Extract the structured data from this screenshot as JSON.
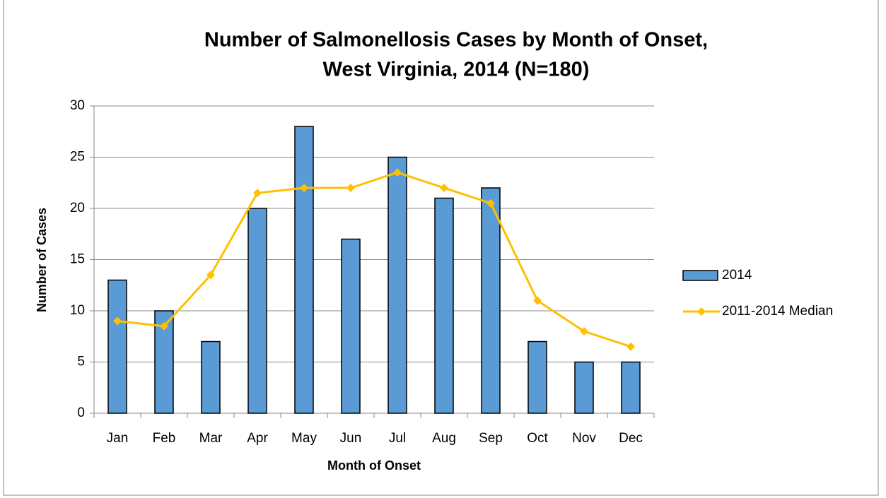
{
  "chart_data": {
    "type": "bar",
    "title": [
      "Number of Salmonellosis Cases by Month of Onset,",
      "West Virginia, 2014 (N=180)"
    ],
    "x_label": "Month of Onset",
    "y_label": "Number of Cases",
    "categories": [
      "Jan",
      "Feb",
      "Mar",
      "Apr",
      "May",
      "Jun",
      "Jul",
      "Aug",
      "Sep",
      "Oct",
      "Nov",
      "Dec"
    ],
    "series": [
      {
        "name": "2014",
        "type": "bar",
        "color": "#5b9bd5",
        "values": [
          13,
          10,
          7,
          20,
          28,
          17,
          25,
          21,
          22,
          7,
          5,
          5
        ]
      },
      {
        "name": "2011-2014 Median",
        "type": "line",
        "color": "#ffc000",
        "values": [
          9,
          8.5,
          13.5,
          21.5,
          22,
          22,
          23.5,
          22,
          20.5,
          11,
          8,
          6.5
        ]
      }
    ],
    "ylim": [
      0,
      30
    ],
    "yticks": [
      0,
      5,
      10,
      15,
      20,
      25,
      30
    ],
    "grid": true,
    "legend": "right"
  }
}
